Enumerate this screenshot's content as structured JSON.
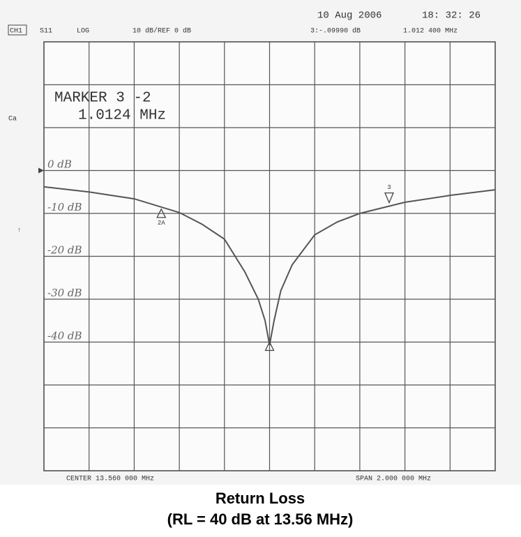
{
  "chart_data": {
    "type": "line",
    "title": "Return Loss",
    "subtitle": "(RL = 40 dB at 13.56 MHz)",
    "header": {
      "date": "10 Aug 2006",
      "time": "18: 32: 26",
      "channel": "CH1",
      "parameter": "S11",
      "format": "LOG",
      "scale": "10 dB/REF 0 dB",
      "marker_value": "3:-.09990 dB",
      "marker_freq": "1.012 400 MHz",
      "side_label": "Ca"
    },
    "annotation": [
      "MARKER 3 -2",
      "1.0124 MHz"
    ],
    "center": "CENTER  13.560 000 MHz",
    "span": "SPAN  2.000 000 MHz",
    "xlim": [
      12.56,
      14.56
    ],
    "xgrid": [
      12.76,
      12.96,
      13.16,
      13.36,
      13.56,
      13.76,
      13.96,
      14.16,
      14.36
    ],
    "ylim": [
      -70,
      30
    ],
    "ygrid": [
      -60,
      -50,
      -40,
      -30,
      -20,
      -10,
      0,
      10,
      20
    ],
    "yticks": [
      {
        "value": 0,
        "label": "0 dB"
      },
      {
        "value": -10,
        "label": "-10 dB"
      },
      {
        "value": -20,
        "label": "-20 dB"
      },
      {
        "value": -30,
        "label": "-30 dB"
      },
      {
        "value": -40,
        "label": "-40 dB"
      }
    ],
    "x": [
      12.56,
      12.76,
      12.96,
      13.16,
      13.26,
      13.36,
      13.45,
      13.51,
      13.54,
      13.56,
      13.58,
      13.61,
      13.66,
      13.76,
      13.86,
      13.96,
      14.16,
      14.36,
      14.56
    ],
    "series": [
      {
        "name": "S11",
        "color": "#555555",
        "values": [
          -3.8,
          -5,
          -6.6,
          -9.8,
          -12.5,
          -16,
          -23.6,
          -30,
          -35,
          -40.7,
          -35,
          -28,
          -22,
          -15,
          -12,
          -10,
          -7.4,
          -5.8,
          -4.5
        ]
      }
    ],
    "markers": [
      {
        "label": "2A",
        "x": 13.08,
        "y": -9
      },
      {
        "label": "3",
        "x": 14.09,
        "y": -7.5
      },
      {
        "x": 13.56,
        "y": -40
      }
    ]
  }
}
